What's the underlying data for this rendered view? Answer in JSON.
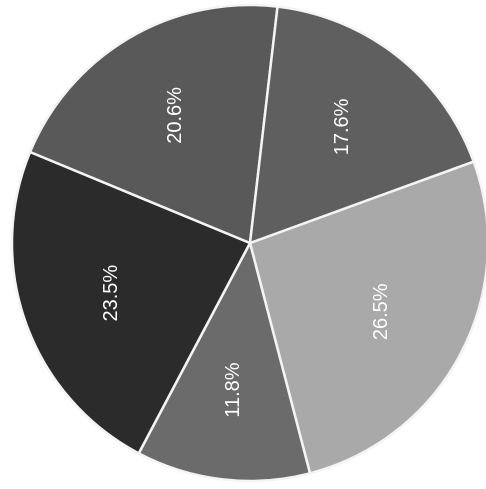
{
  "chart_data": {
    "type": "pie",
    "title": "",
    "legend": "none",
    "slices": [
      {
        "label": "26.5%",
        "value": 26.5,
        "color": "#a9a9a9"
      },
      {
        "label": "11.8%",
        "value": 11.8,
        "color": "#6b6b6b"
      },
      {
        "label": "23.5%",
        "value": 23.5,
        "color": "#2b2b2b"
      },
      {
        "label": "20.6%",
        "value": 20.6,
        "color": "#595959"
      },
      {
        "label": "17.6%",
        "value": 17.6,
        "color": "#5f5f5f"
      }
    ]
  }
}
